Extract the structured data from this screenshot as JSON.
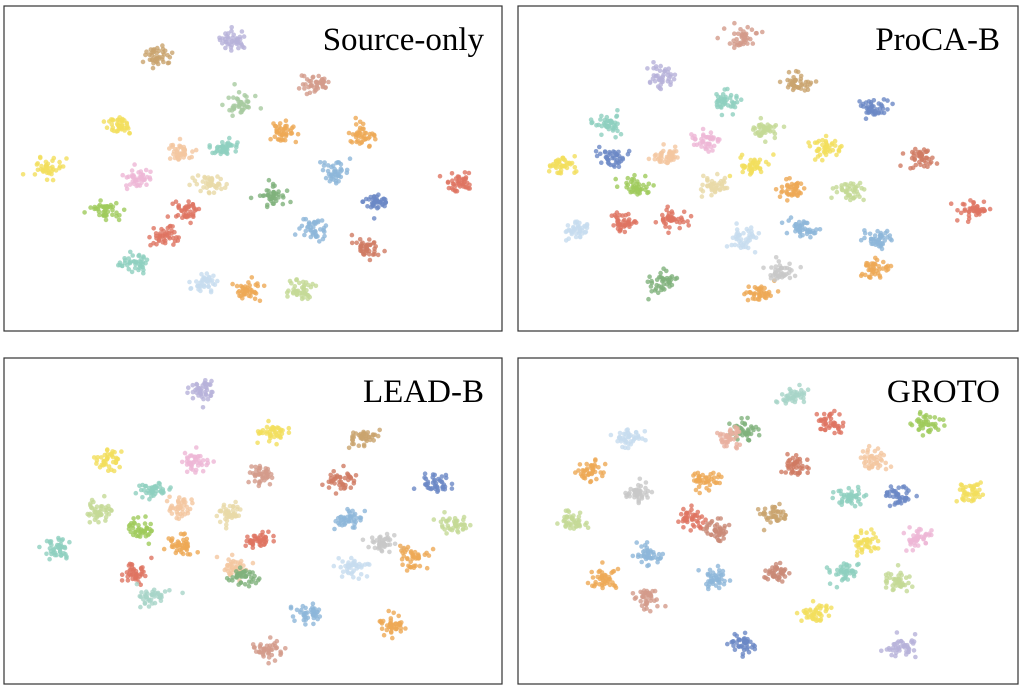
{
  "chart_data": [
    {
      "type": "scatter",
      "title": "Source-only",
      "xlim": [
        0,
        100
      ],
      "ylim": [
        0,
        100
      ],
      "x": [
        46,
        30,
        63,
        22,
        7,
        19,
        73,
        67,
        76,
        93,
        74,
        63,
        47,
        56,
        44,
        35,
        41,
        36,
        31,
        25,
        40,
        49,
        60,
        54,
        26
      ],
      "values": [
        92,
        87,
        78,
        64,
        50,
        36,
        61,
        49,
        39,
        46,
        24,
        30,
        71,
        62,
        57,
        55,
        45,
        36,
        28,
        19,
        13,
        10,
        10,
        41,
        47
      ],
      "colors": [
        "#b7b1d9",
        "#c9a46e",
        "#d39b8b",
        "#f3df5c",
        "#f3df5c",
        "#9fcb5b",
        "#eea955",
        "#8db6da",
        "#6b88c6",
        "#de7461",
        "#cf7a63",
        "#8db6da",
        "#a8cba0",
        "#eea955",
        "#8fcfbf",
        "#f4c7a0",
        "#e8d9a8",
        "#de7461",
        "#de7461",
        "#8fcfbf",
        "#c7dcef",
        "#eea955",
        "#c4da96",
        "#80b27c",
        "#eeb7d6"
      ]
    },
    {
      "type": "scatter",
      "title": "ProCA-B",
      "xlim": [
        0,
        100
      ],
      "ylim": [
        0,
        100
      ],
      "x": [
        45,
        28,
        56,
        72,
        41,
        17,
        49,
        62,
        82,
        7,
        22,
        17,
        67,
        93,
        37,
        29,
        39,
        47,
        20,
        30,
        10,
        57,
        45,
        73,
        72,
        28,
        48,
        52,
        55
      ],
      "values": [
        93,
        80,
        78,
        70,
        72,
        65,
        63,
        57,
        53,
        51,
        44,
        54,
        43,
        36,
        59,
        54,
        44,
        51,
        32,
        33,
        30,
        30,
        27,
        27,
        17,
        13,
        9,
        16,
        43
      ],
      "colors": [
        "#d39b8b",
        "#b7b1d9",
        "#c9a46e",
        "#6b88c6",
        "#8fcfbf",
        "#8fcfbf",
        "#c4da96",
        "#f3df5c",
        "#cf7a63",
        "#f3df5c",
        "#9fcb5b",
        "#6b88c6",
        "#c4da96",
        "#de7461",
        "#eeb7d6",
        "#f4c7a0",
        "#e8d9a8",
        "#f3df5c",
        "#de7461",
        "#de7461",
        "#c7dcef",
        "#8db6da",
        "#c7dcef",
        "#8db6da",
        "#eea955",
        "#80b27c",
        "#eea955",
        "#c8c8c8",
        "#eea955"
      ]
    },
    {
      "type": "scatter",
      "title": "LEAD-B",
      "xlim": [
        0,
        100
      ],
      "ylim": [
        0,
        100
      ],
      "x": [
        39,
        54,
        73,
        20,
        38,
        52,
        68,
        88,
        29,
        18,
        70,
        92,
        27,
        35,
        45,
        51,
        9,
        77,
        83,
        71,
        35,
        46,
        48,
        25,
        29,
        62,
        79,
        53
      ],
      "values": [
        93,
        79,
        77,
        70,
        69,
        65,
        63,
        62,
        60,
        53,
        51,
        49,
        47,
        55,
        53,
        44,
        41,
        42,
        38,
        35,
        42,
        35,
        32,
        33,
        25,
        20,
        16,
        8
      ],
      "colors": [
        "#b7b1d9",
        "#f3df5c",
        "#c9a46e",
        "#f3df5c",
        "#eeb7d6",
        "#d39b8b",
        "#cf7a63",
        "#6b88c6",
        "#8fcfbf",
        "#c4da96",
        "#8db6da",
        "#c4da96",
        "#9fcb5b",
        "#f4c7a0",
        "#e8d9a8",
        "#de7461",
        "#8fcfbf",
        "#c8c8c8",
        "#eea955",
        "#c7dcef",
        "#eea955",
        "#f4c7a0",
        "#80b27c",
        "#de7461",
        "#a8d4c8",
        "#8db6da",
        "#eea955",
        "#d39b8b"
      ]
    },
    {
      "type": "scatter",
      "title": "GROTO",
      "xlim": [
        0,
        100
      ],
      "ylim": [
        0,
        100
      ],
      "x": [
        55,
        63,
        83,
        45,
        42,
        21,
        56,
        72,
        13,
        37,
        23,
        67,
        92,
        51,
        9,
        39,
        81,
        70,
        25,
        16,
        39,
        52,
        66,
        77,
        25,
        60,
        45,
        78,
        77,
        34
      ],
      "values": [
        91,
        82,
        82,
        80,
        77,
        77,
        68,
        70,
        66,
        63,
        59,
        58,
        59,
        52,
        50,
        47,
        45,
        43,
        39,
        31,
        31,
        33,
        33,
        30,
        25,
        20,
        10,
        9,
        58,
        51
      ],
      "colors": [
        "#a8d4c8",
        "#de7461",
        "#9fcb5b",
        "#80b27c",
        "#e8b0a0",
        "#c7dcef",
        "#cf7a63",
        "#f4c7a0",
        "#eea955",
        "#eea955",
        "#c8c8c8",
        "#8fcfbf",
        "#f3df5c",
        "#c9a46e",
        "#c4da96",
        "#c98a77",
        "#eeb7d6",
        "#f3df5c",
        "#8db6da",
        "#eea955",
        "#8db6da",
        "#c98a77",
        "#8fcfbf",
        "#c4da96",
        "#d39b8b",
        "#f3df5c",
        "#6b88c6",
        "#b7b1d9",
        "#6b88c6",
        "#de7461"
      ]
    }
  ]
}
